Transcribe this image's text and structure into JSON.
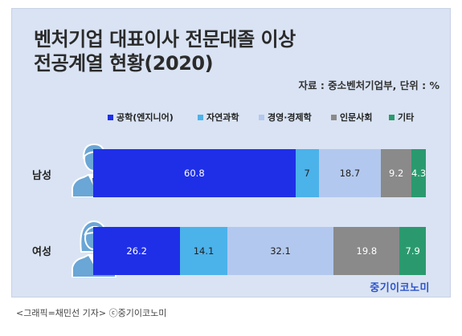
{
  "title_lines": [
    "벤처기업 대표이사 전문대졸 이상",
    "전공계열 현황(2020)"
  ],
  "source_note": "자료 : 중소벤처기업부, 단위 : %",
  "watermark": "중기이코노미",
  "caption": "<그래픽=채민선 기자>   ⓒ중기이코노미",
  "chart_data": {
    "type": "bar",
    "orientation": "horizontal",
    "stacked": true,
    "title": "벤처기업 대표이사 전문대졸 이상 전공계열 현황(2020)",
    "unit": "%",
    "xlim": [
      0,
      100
    ],
    "legend_position": "top",
    "grid": false,
    "categories": [
      "남성",
      "여성"
    ],
    "series": [
      {
        "name": "공학(엔지니어)",
        "color": "#1f2fe8",
        "values": [
          60.8,
          26.2
        ]
      },
      {
        "name": "자연과학",
        "color": "#4cb2ea",
        "values": [
          7,
          14.1
        ]
      },
      {
        "name": "경영·경제학",
        "color": "#b3c8ee",
        "values": [
          18.7,
          32.1
        ]
      },
      {
        "name": "인문사회",
        "color": "#8a8a8a",
        "values": [
          9.2,
          19.8
        ]
      },
      {
        "name": "기타",
        "color": "#2a9a6e",
        "values": [
          4.3,
          7.9
        ]
      }
    ],
    "data_labels": [
      [
        "60.8",
        "7",
        "18.7",
        "9.2",
        "4.3"
      ],
      [
        "26.2",
        "14.1",
        "32.1",
        "19.8",
        "7.9"
      ]
    ]
  }
}
